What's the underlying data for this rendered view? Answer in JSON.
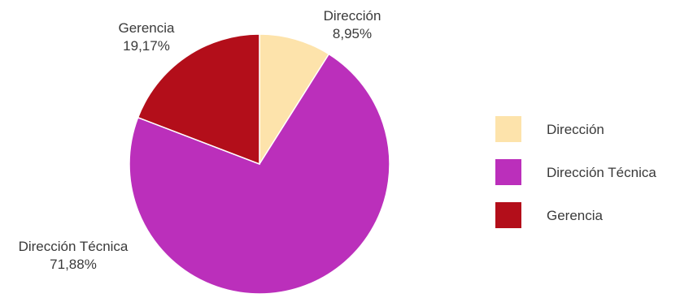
{
  "chart_data": {
    "type": "pie",
    "title": "",
    "slices": [
      {
        "label": "Dirección",
        "value": 8.95,
        "value_label": "8,95%",
        "color": "#fde3ab"
      },
      {
        "label": "Dirección Técnica",
        "value": 71.88,
        "value_label": "71,88%",
        "color": "#bb2fbb"
      },
      {
        "label": "Gerencia",
        "value": 19.17,
        "value_label": "19,17%",
        "color": "#b30e1a"
      }
    ],
    "legend": {
      "placement": "right",
      "entries": [
        "Dirección",
        "Dirección Técnica",
        "Gerencia"
      ]
    },
    "start_angle": "top",
    "direction": "clockwise"
  }
}
